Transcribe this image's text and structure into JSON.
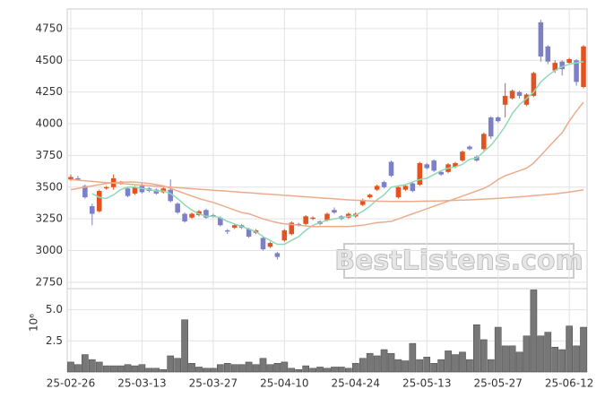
{
  "chart_data": [
    {
      "type": "candlestick",
      "ylim": [
        2700,
        4905
      ],
      "yticks": [
        2750,
        3000,
        3250,
        3500,
        3750,
        4000,
        4250,
        4500,
        4750
      ],
      "grid": true,
      "up_color": "#e2531f",
      "down_color": "#7c80c6",
      "open": [
        3560,
        3570,
        3510,
        3350,
        3310,
        3490,
        3500,
        3530,
        3490,
        3450,
        3510,
        3490,
        3480,
        3460,
        3480,
        3370,
        3290,
        3260,
        3280,
        3320,
        3280,
        3260,
        3160,
        3180,
        3200,
        3170,
        3140,
        3100,
        3030,
        2980,
        3080,
        3130,
        3210,
        3210,
        3250,
        3230,
        3240,
        3320,
        3270,
        3260,
        3270,
        3360,
        3420,
        3480,
        3540,
        3700,
        3420,
        3480,
        3530,
        3520,
        3680,
        3710,
        3620,
        3620,
        3660,
        3710,
        3820,
        3740,
        3800,
        4050,
        4050,
        4150,
        4200,
        4250,
        4150,
        4220,
        4800,
        4610,
        4420,
        4490,
        4480,
        4500,
        4290
      ],
      "high": [
        3600,
        3590,
        3520,
        3370,
        3480,
        3510,
        3600,
        3550,
        3500,
        3510,
        3530,
        3500,
        3490,
        3500,
        3560,
        3380,
        3300,
        3300,
        3320,
        3330,
        3290,
        3270,
        3170,
        3210,
        3210,
        3180,
        3170,
        3110,
        3070,
        2990,
        3170,
        3230,
        3220,
        3280,
        3270,
        3240,
        3300,
        3340,
        3280,
        3300,
        3300,
        3410,
        3450,
        3520,
        3550,
        3710,
        3510,
        3520,
        3540,
        3700,
        3690,
        3720,
        3630,
        3690,
        3700,
        3790,
        3830,
        3750,
        3930,
        4060,
        4060,
        4320,
        4270,
        4260,
        4240,
        4410,
        4820,
        4620,
        4500,
        4500,
        4520,
        4510,
        4620
      ],
      "low": [
        3550,
        3550,
        3410,
        3200,
        3300,
        3480,
        3480,
        3520,
        3420,
        3440,
        3450,
        3460,
        3440,
        3450,
        3380,
        3290,
        3220,
        3250,
        3270,
        3250,
        3260,
        3190,
        3130,
        3170,
        3170,
        3100,
        3130,
        3000,
        3020,
        2930,
        3070,
        3120,
        3190,
        3200,
        3240,
        3200,
        3230,
        3290,
        3240,
        3250,
        3260,
        3350,
        3410,
        3470,
        3490,
        3580,
        3410,
        3470,
        3460,
        3510,
        3640,
        3620,
        3590,
        3610,
        3650,
        3700,
        3790,
        3700,
        3790,
        3880,
        4010,
        4050,
        4190,
        4200,
        4140,
        4210,
        4490,
        4470,
        4400,
        4380,
        4470,
        4300,
        4280
      ],
      "close": [
        3580,
        3560,
        3420,
        3290,
        3470,
        3500,
        3570,
        3540,
        3430,
        3500,
        3460,
        3470,
        3450,
        3490,
        3390,
        3300,
        3230,
        3290,
        3310,
        3260,
        3275,
        3200,
        3150,
        3200,
        3180,
        3110,
        3160,
        3010,
        3060,
        2950,
        3160,
        3220,
        3200,
        3270,
        3260,
        3210,
        3290,
        3300,
        3250,
        3290,
        3290,
        3400,
        3440,
        3510,
        3500,
        3590,
        3500,
        3510,
        3470,
        3690,
        3650,
        3630,
        3600,
        3680,
        3690,
        3780,
        3800,
        3710,
        3920,
        3900,
        4020,
        4220,
        4260,
        4220,
        4230,
        4400,
        4530,
        4490,
        4480,
        4430,
        4510,
        4330,
        4610
      ],
      "series": [
        {
          "color": "#8fd9b6",
          "values": [
            null,
            null,
            null,
            3450,
            3420,
            3410,
            3440,
            3480,
            3500,
            3500,
            3490,
            3480,
            3470,
            3470,
            3450,
            3410,
            3360,
            3320,
            3290,
            3270,
            3270,
            3260,
            3230,
            3210,
            3190,
            3170,
            3150,
            3110,
            3080,
            3050,
            3050,
            3080,
            3110,
            3160,
            3200,
            3220,
            3240,
            3250,
            3260,
            3270,
            3280,
            3310,
            3350,
            3400,
            3440,
            3500,
            3510,
            3520,
            3540,
            3560,
            3570,
            3600,
            3630,
            3650,
            3660,
            3680,
            3720,
            3730,
            3780,
            3830,
            3900,
            3980,
            4080,
            4150,
            4200,
            4250,
            4330,
            4380,
            4420,
            4450,
            4470,
            4480,
            4490
          ]
        },
        {
          "color": "#eeab8c",
          "values": [
            3480,
            3490,
            3500,
            3510,
            3520,
            3530,
            3535,
            3540,
            3540,
            3540,
            3535,
            3530,
            3520,
            3510,
            3490,
            3470,
            3450,
            3430,
            3410,
            3395,
            3380,
            3360,
            3340,
            3320,
            3300,
            3290,
            3270,
            3250,
            3235,
            3220,
            3210,
            3205,
            3200,
            3195,
            3190,
            3190,
            3190,
            3190,
            3190,
            3190,
            3195,
            3200,
            3210,
            3220,
            3225,
            3230,
            3250,
            3270,
            3290,
            3310,
            3330,
            3350,
            3370,
            3390,
            3410,
            3430,
            3450,
            3470,
            3490,
            3520,
            3560,
            3590,
            3610,
            3630,
            3650,
            3690,
            3750,
            3810,
            3870,
            3930,
            4020,
            4100,
            4170
          ]
        },
        {
          "color": "#eeab8c",
          "values": [
            3560,
            3555,
            3550,
            3545,
            3540,
            3536,
            3532,
            3528,
            3524,
            3520,
            3516,
            3512,
            3508,
            3504,
            3500,
            3496,
            3492,
            3488,
            3484,
            3480,
            3476,
            3472,
            3468,
            3464,
            3460,
            3456,
            3452,
            3448,
            3444,
            3440,
            3436,
            3432,
            3428,
            3424,
            3420,
            3416,
            3412,
            3408,
            3404,
            3400,
            3397,
            3394,
            3392,
            3390,
            3389,
            3388,
            3388,
            3388,
            3388,
            3389,
            3390,
            3391,
            3392,
            3394,
            3396,
            3398,
            3400,
            3403,
            3406,
            3409,
            3412,
            3416,
            3420,
            3424,
            3428,
            3433,
            3438,
            3443,
            3448,
            3455,
            3462,
            3470,
            3478
          ]
        }
      ],
      "watermark": "BestListens.com"
    },
    {
      "type": "bar",
      "ylabel": "10⁶",
      "ylim": [
        0,
        6.7
      ],
      "yticks": [
        2.5,
        {
          "value": 5,
          "label": "5.0"
        }
      ],
      "grid": true,
      "color": "#777777",
      "categories": [
        "25-02-26",
        null,
        null,
        null,
        null,
        null,
        null,
        null,
        null,
        null,
        "25-03-13",
        null,
        null,
        null,
        null,
        null,
        null,
        null,
        null,
        null,
        "25-03-27",
        null,
        null,
        null,
        null,
        null,
        null,
        null,
        null,
        null,
        "25-04-10",
        null,
        null,
        null,
        null,
        null,
        null,
        null,
        null,
        null,
        "25-04-24",
        null,
        null,
        null,
        null,
        null,
        null,
        null,
        null,
        null,
        "25-05-13",
        null,
        null,
        null,
        null,
        null,
        null,
        null,
        null,
        null,
        "25-05-27",
        null,
        null,
        null,
        null,
        null,
        null,
        null,
        null,
        null,
        "25-06-12",
        null,
        null
      ],
      "values": [
        0.8,
        0.6,
        1.4,
        1.0,
        0.8,
        0.5,
        0.5,
        0.5,
        0.6,
        0.5,
        0.6,
        0.3,
        0.3,
        0.2,
        1.3,
        1.1,
        4.2,
        0.7,
        0.4,
        0.3,
        0.3,
        0.6,
        0.7,
        0.6,
        0.6,
        0.8,
        0.6,
        1.1,
        0.6,
        0.7,
        0.8,
        0.3,
        0.2,
        0.5,
        0.3,
        0.4,
        0.3,
        0.4,
        0.4,
        0.3,
        0.7,
        1.1,
        1.5,
        1.3,
        1.8,
        1.5,
        1.0,
        0.9,
        2.3,
        1.0,
        1.2,
        0.7,
        1.0,
        1.7,
        1.4,
        1.6,
        1.0,
        3.8,
        2.6,
        1.0,
        3.6,
        2.1,
        2.1,
        1.6,
        2.9,
        6.6,
        2.9,
        3.2,
        2.0,
        1.8,
        3.7,
        2.1,
        3.6
      ]
    }
  ]
}
